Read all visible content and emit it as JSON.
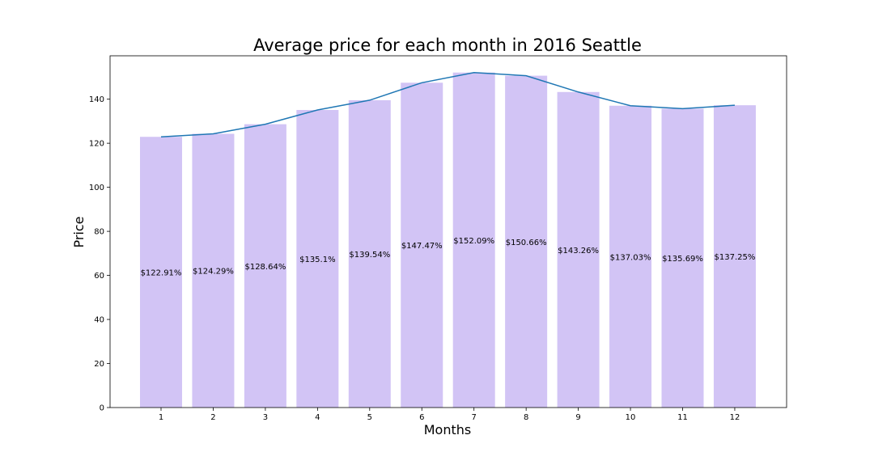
{
  "chart_data": {
    "type": "bar",
    "title": "Average price for each month in 2016 Seattle",
    "xlabel": "Months",
    "ylabel": "Price",
    "categories": [
      "1",
      "2",
      "3",
      "4",
      "5",
      "6",
      "7",
      "8",
      "9",
      "10",
      "11",
      "12"
    ],
    "values": [
      122.91,
      124.29,
      128.64,
      135.1,
      139.54,
      147.47,
      152.09,
      150.66,
      143.26,
      137.03,
      135.69,
      137.25
    ],
    "data_labels": [
      "$122.91%",
      "$124.29%",
      "$128.64%",
      "$135.1%",
      "$139.54%",
      "$147.47%",
      "$152.09%",
      "$150.66%",
      "$143.26%",
      "$137.03%",
      "$135.69%",
      "$137.25%"
    ],
    "overlay_line": {
      "type": "line",
      "values": [
        122.91,
        124.29,
        128.64,
        135.1,
        139.54,
        147.47,
        152.09,
        150.66,
        143.26,
        137.03,
        135.69,
        137.25
      ]
    },
    "yticks": [
      0,
      20,
      40,
      60,
      80,
      100,
      120,
      140
    ],
    "ylim": [
      0,
      159.7
    ],
    "grid": false,
    "legend": "none",
    "colors": {
      "bar": "#d2c4f5",
      "line": "#1f77b4"
    }
  }
}
